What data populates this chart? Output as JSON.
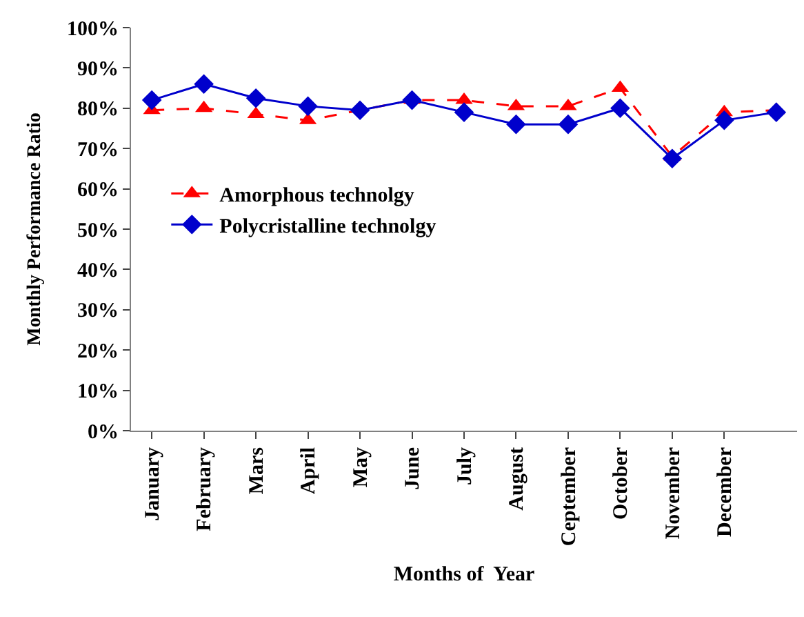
{
  "chart_data": {
    "type": "line",
    "xlabel": "Months of  Year",
    "ylabel": "Monthly Performance Ratio",
    "categories": [
      "January",
      "February",
      "Mars",
      "April",
      "May",
      "June",
      "July",
      "August",
      "Ceptember",
      "October",
      "November",
      "December",
      null
    ],
    "series": [
      {
        "name": "Amorphous technolgy",
        "color": "#ff0000",
        "marker": "triangle",
        "line_style": "dashed",
        "values": [
          79.5,
          80,
          78.5,
          77,
          null,
          82,
          82,
          80.5,
          80.5,
          85,
          68,
          79,
          79.5
        ]
      },
      {
        "name": "Polycristalline technolgy",
        "color": "#0000cc",
        "marker": "diamond",
        "line_style": "solid",
        "values": [
          82,
          86,
          82.5,
          80.5,
          79.5,
          82,
          79,
          76,
          76,
          80,
          67.5,
          77,
          79
        ]
      }
    ],
    "ylim": [
      0,
      100
    ],
    "yticks": [
      {
        "value": 0,
        "label": "0%"
      },
      {
        "value": 10,
        "label": "10%"
      },
      {
        "value": 20,
        "label": "20%"
      },
      {
        "value": 30,
        "label": "30%"
      },
      {
        "value": 40,
        "label": "40%"
      },
      {
        "value": 50,
        "label": "50%"
      },
      {
        "value": 60,
        "label": "60%"
      },
      {
        "value": 70,
        "label": "70%"
      },
      {
        "value": 80,
        "label": "80%"
      },
      {
        "value": 90,
        "label": "90%"
      },
      {
        "value": 100,
        "label": "100%"
      }
    ],
    "legend": "left"
  }
}
